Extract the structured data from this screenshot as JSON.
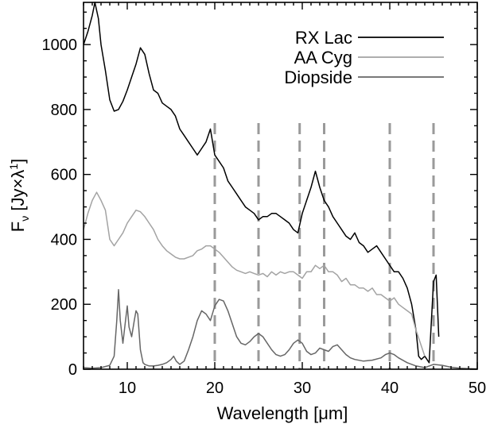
{
  "chart_data": {
    "type": "line",
    "xlabel": "Wavelength [μm]",
    "ylabel": "Fν [Jy×λ¹]",
    "ylabel_main": "F",
    "ylabel_sub": "ν",
    "ylabel_rest": " [Jy×λ",
    "ylabel_sup": "1",
    "ylabel_end": "]",
    "xlim": [
      5,
      50
    ],
    "ylim": [
      0,
      1130
    ],
    "xticks": [
      10,
      20,
      30,
      40,
      50
    ],
    "yticks": [
      0,
      200,
      400,
      600,
      800,
      1000
    ],
    "grid": false,
    "legend_position": "top-right",
    "vlines": {
      "x": [
        20,
        25,
        29.7,
        32.5,
        40,
        45
      ],
      "style": "dashed",
      "color": "#9a9a9a"
    },
    "series": [
      {
        "name": "RX Lac",
        "color": "#000000",
        "x": [
          5,
          5.5,
          6,
          6.3,
          6.7,
          7,
          7.5,
          8,
          8.5,
          9,
          9.5,
          10,
          10.5,
          11,
          11.5,
          12,
          12.5,
          13,
          13.5,
          14,
          14.5,
          15,
          15.5,
          16,
          16.5,
          17,
          17.5,
          18,
          18.5,
          19,
          19.5,
          20,
          20.5,
          21,
          21.5,
          22,
          22.5,
          23,
          23.5,
          24,
          24.5,
          25,
          25.5,
          26,
          26.5,
          27,
          27.5,
          28,
          28.5,
          29,
          29.5,
          30,
          30.5,
          31,
          31.5,
          32,
          32.5,
          33,
          33.5,
          34,
          34.5,
          35,
          35.5,
          36,
          36.5,
          37,
          37.5,
          38,
          38.5,
          39,
          39.5,
          40,
          40.5,
          41,
          41.5,
          42,
          42.5,
          43,
          43.3,
          43.6,
          44,
          44.5,
          45,
          45.3,
          45.6
        ],
        "y": [
          1000,
          1040,
          1090,
          1130,
          1080,
          1000,
          920,
          830,
          795,
          800,
          825,
          860,
          900,
          940,
          990,
          970,
          910,
          860,
          850,
          820,
          810,
          800,
          780,
          740,
          720,
          700,
          680,
          660,
          680,
          700,
          740,
          660,
          640,
          620,
          580,
          560,
          540,
          520,
          500,
          490,
          480,
          460,
          470,
          470,
          480,
          480,
          470,
          460,
          450,
          430,
          420,
          480,
          520,
          560,
          610,
          560,
          520,
          500,
          470,
          450,
          430,
          410,
          400,
          420,
          390,
          380,
          360,
          370,
          380,
          360,
          340,
          320,
          300,
          300,
          280,
          250,
          200,
          120,
          40,
          30,
          40,
          20,
          270,
          290,
          100
        ]
      },
      {
        "name": "AA Cyg",
        "color": "#a3a3a3",
        "x": [
          5,
          5.5,
          6,
          6.5,
          7,
          7.5,
          8,
          8.5,
          9,
          9.5,
          10,
          10.5,
          11,
          11.5,
          12,
          12.5,
          13,
          13.5,
          14,
          14.5,
          15,
          15.5,
          16,
          16.5,
          17,
          17.5,
          18,
          18.5,
          19,
          19.5,
          20,
          20.5,
          21,
          21.5,
          22,
          22.5,
          23,
          23.5,
          24,
          24.5,
          25,
          25.5,
          26,
          26.5,
          27,
          27.5,
          28,
          28.5,
          29,
          29.5,
          30,
          30.5,
          31,
          31.5,
          32,
          32.5,
          33,
          33.5,
          34,
          34.5,
          35,
          35.5,
          36,
          36.5,
          37,
          37.5,
          38,
          38.5,
          39,
          39.5,
          40,
          40.5,
          41,
          41.5,
          42,
          42.5,
          43,
          43.5,
          44
        ],
        "y": [
          430,
          480,
          520,
          545,
          520,
          490,
          400,
          380,
          400,
          420,
          450,
          470,
          490,
          485,
          470,
          450,
          430,
          400,
          380,
          365,
          355,
          345,
          340,
          340,
          345,
          350,
          365,
          370,
          380,
          380,
          370,
          360,
          345,
          330,
          315,
          305,
          300,
          295,
          300,
          295,
          290,
          295,
          285,
          300,
          290,
          300,
          295,
          300,
          300,
          290,
          280,
          300,
          300,
          320,
          310,
          320,
          300,
          300,
          290,
          270,
          280,
          260,
          260,
          250,
          250,
          240,
          250,
          230,
          230,
          220,
          210,
          220,
          200,
          190,
          180,
          170,
          120,
          80,
          40
        ]
      },
      {
        "name": "Diopside",
        "color": "#666666",
        "x": [
          5,
          6,
          7,
          8,
          8.5,
          8.8,
          9,
          9.2,
          9.5,
          9.8,
          10,
          10.2,
          10.5,
          10.8,
          11,
          11.2,
          11.5,
          11.8,
          12,
          12.5,
          13,
          13.5,
          14,
          14.5,
          15,
          15.3,
          15.6,
          16,
          16.5,
          17,
          17.5,
          18,
          18.5,
          19,
          19.5,
          20,
          20.5,
          21,
          21.5,
          22,
          22.5,
          23,
          23.5,
          24,
          24.5,
          25,
          25.5,
          26,
          26.5,
          27,
          27.5,
          28,
          28.5,
          29,
          29.5,
          30,
          30.5,
          31,
          31.5,
          32,
          32.5,
          33,
          33.5,
          34,
          34.5,
          35,
          35.5,
          36,
          37,
          38,
          39,
          39.5,
          40,
          40.5,
          41,
          42,
          43,
          44,
          45,
          46,
          47,
          48,
          49,
          50
        ],
        "y": [
          5,
          3,
          5,
          12,
          40,
          150,
          245,
          150,
          80,
          150,
          195,
          130,
          100,
          150,
          180,
          170,
          60,
          20,
          15,
          10,
          10,
          12,
          15,
          20,
          30,
          40,
          25,
          15,
          25,
          60,
          100,
          150,
          180,
          170,
          150,
          195,
          215,
          210,
          180,
          140,
          100,
          80,
          75,
          85,
          100,
          110,
          100,
          80,
          60,
          45,
          40,
          45,
          60,
          80,
          90,
          80,
          55,
          45,
          50,
          65,
          60,
          55,
          70,
          75,
          60,
          45,
          35,
          30,
          25,
          28,
          35,
          45,
          50,
          45,
          35,
          20,
          10,
          5,
          15,
          12,
          6,
          3,
          2,
          1
        ]
      }
    ]
  }
}
